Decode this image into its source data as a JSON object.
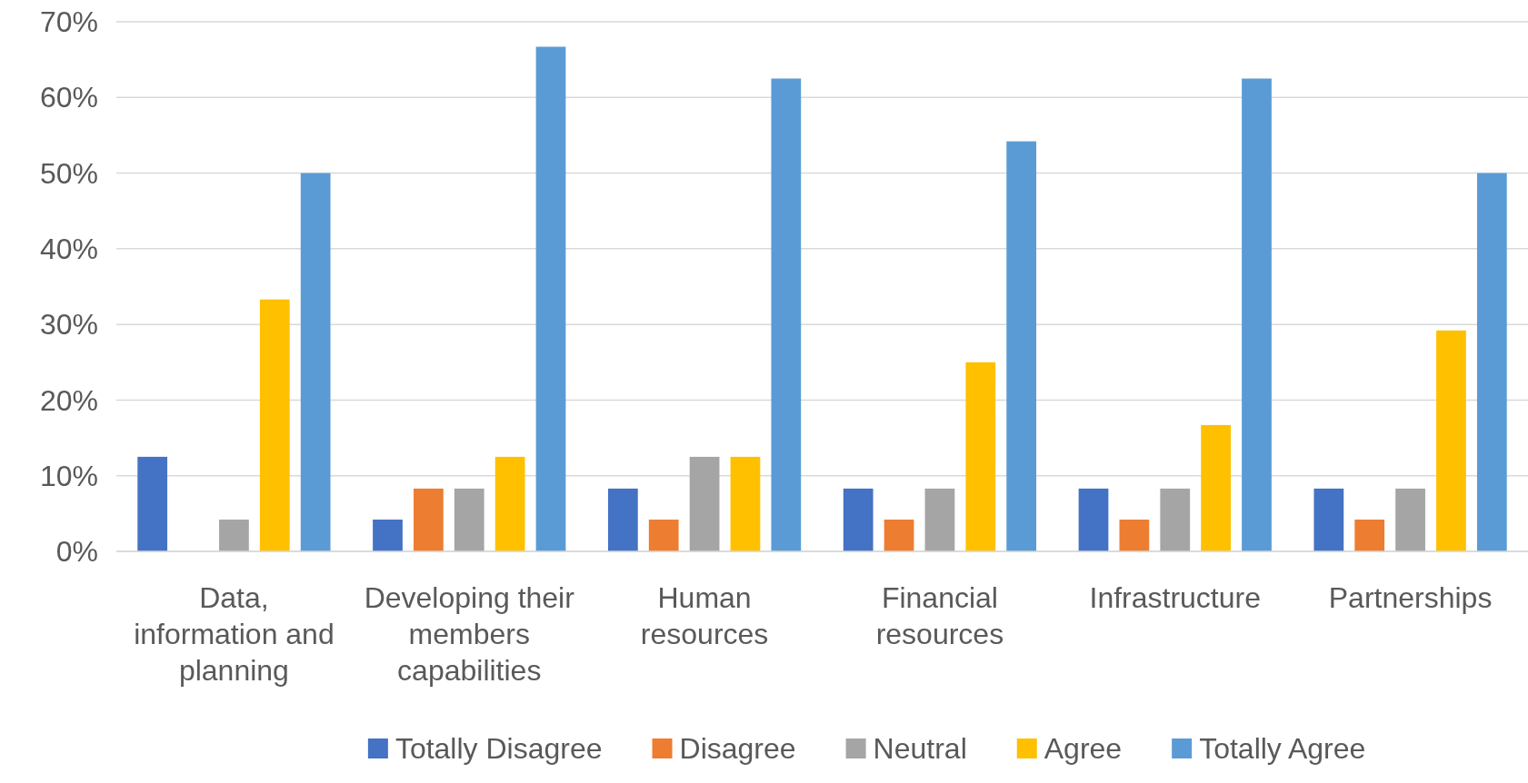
{
  "chart_data": {
    "type": "bar",
    "categories": [
      "Data, information and planning",
      "Developing their members capabilities",
      "Human resources",
      "Financial resources",
      "Infrastructure",
      "Partnerships"
    ],
    "series": [
      {
        "name": "Totally Disagree",
        "color": "#4472c4",
        "values": [
          12.5,
          4.2,
          8.3,
          8.3,
          8.3,
          8.3
        ]
      },
      {
        "name": "Disagree",
        "color": "#ed7d31",
        "values": [
          0,
          8.3,
          4.2,
          4.2,
          4.2,
          4.2
        ]
      },
      {
        "name": "Neutral",
        "color": "#a5a5a5",
        "values": [
          4.2,
          8.3,
          12.5,
          8.3,
          8.3,
          8.3
        ]
      },
      {
        "name": "Agree",
        "color": "#ffc000",
        "values": [
          33.3,
          12.5,
          12.5,
          25,
          16.7,
          29.2
        ]
      },
      {
        "name": "Totally Agree",
        "color": "#5b9bd5",
        "values": [
          50,
          66.7,
          62.5,
          54.2,
          62.5,
          50
        ]
      }
    ],
    "ylim": [
      0,
      70
    ],
    "yticks": [
      {
        "value": 0,
        "label": "0%"
      },
      {
        "value": 10,
        "label": "10%"
      },
      {
        "value": 20,
        "label": "20%"
      },
      {
        "value": 30,
        "label": "30%"
      },
      {
        "value": 40,
        "label": "40%"
      },
      {
        "value": 50,
        "label": "50%"
      },
      {
        "value": 60,
        "label": "60%"
      },
      {
        "value": 70,
        "label": "70%"
      }
    ],
    "grid": "y",
    "legend": "bottom"
  }
}
